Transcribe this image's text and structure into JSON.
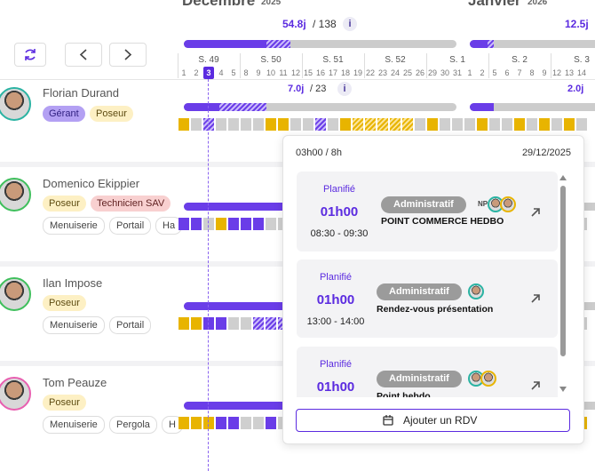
{
  "months": [
    {
      "name": "Décembre",
      "year": "2025"
    },
    {
      "name": "Janvier",
      "year": "2026"
    }
  ],
  "summaries": [
    {
      "value": "54.8j",
      "total": "/ 138",
      "info": "i"
    },
    {
      "value": "12.5j"
    }
  ],
  "weeks": [
    "S. 49",
    "S. 50",
    "S. 51",
    "S. 52",
    "S. 1",
    "S. 2",
    "S. 3"
  ],
  "days": [
    "1",
    "2",
    "3",
    "4",
    "5",
    "8",
    "9",
    "10",
    "11",
    "12",
    "15",
    "16",
    "17",
    "18",
    "19",
    "22",
    "23",
    "24",
    "25",
    "26",
    "29",
    "30",
    "31",
    "1",
    "2",
    "5",
    "6",
    "7",
    "8",
    "9",
    "12",
    "13",
    "14"
  ],
  "people": [
    {
      "name": "Florian Durand",
      "tags": [
        "Gérant",
        "Poseur"
      ],
      "skills": [],
      "load": "7.0j",
      "total": "/ 23",
      "info": "i",
      "load_next": "2.0j"
    },
    {
      "name": "Domenico Ekippier",
      "tags": [
        "Poseur",
        "Technicien SAV"
      ],
      "skills": [
        "Menuiserie",
        "Portail",
        "Ha"
      ]
    },
    {
      "name": "Ilan Impose",
      "tags": [
        "Poseur"
      ],
      "skills": [
        "Menuiserie",
        "Portail"
      ]
    },
    {
      "name": "Tom Peauze",
      "tags": [
        "Poseur"
      ],
      "skills": [
        "Menuiserie",
        "Pergola",
        "H"
      ]
    }
  ],
  "popover": {
    "capacity": "03h00 / 8h",
    "date": "29/12/2025",
    "appointments": [
      {
        "status": "Planifié",
        "duration": "01h00",
        "time": "08:30 - 09:30",
        "category": "Administratif",
        "title": "POINT COMMERCE HEDBO",
        "initials": "NP"
      },
      {
        "status": "Planifié",
        "duration": "01h00",
        "time": "13:00 - 14:00",
        "category": "Administratif",
        "title": "Rendez-vous présentation"
      },
      {
        "status": "Planifié",
        "duration": "01h00",
        "category": "Administratif",
        "title": "Point hebdo"
      }
    ],
    "add_button": "Ajouter un RDV"
  }
}
